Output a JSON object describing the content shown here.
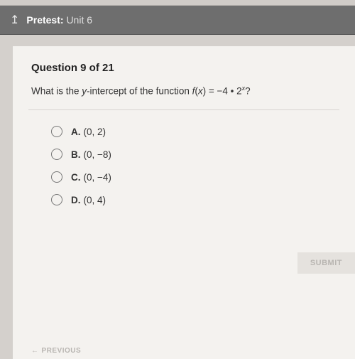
{
  "header": {
    "back_icon": "↥",
    "title_bold": "Pretest:",
    "title_light": "Unit 6"
  },
  "question": {
    "number_label": "Question 9 of 21",
    "prompt_pre": "What is the ",
    "prompt_ital1": "y",
    "prompt_mid": "-intercept of the function ",
    "prompt_ital2": "f",
    "prompt_paren": "(",
    "prompt_ital3": "x",
    "prompt_eq": ") = −4 • 2",
    "prompt_sup": "x",
    "prompt_end": "?"
  },
  "options": [
    {
      "letter": "A.",
      "text": "(0, 2)"
    },
    {
      "letter": "B.",
      "text": "(0, −8)"
    },
    {
      "letter": "C.",
      "text": "(0, −4)"
    },
    {
      "letter": "D.",
      "text": "(0, 4)"
    }
  ],
  "buttons": {
    "submit": "SUBMIT",
    "previous": "PREVIOUS",
    "prev_arrow": "←"
  }
}
